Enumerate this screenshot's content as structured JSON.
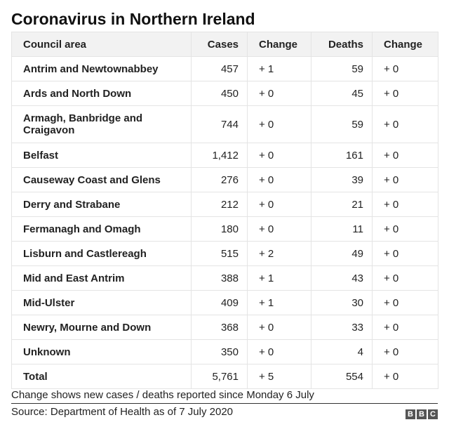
{
  "header": {
    "title": "Coronavirus in Northern Ireland"
  },
  "table": {
    "headers": [
      "Council area",
      "Cases",
      "Change",
      "Deaths",
      "Change"
    ],
    "rows": [
      [
        "Antrim and Newtownabbey",
        "457",
        "+ 1",
        "59",
        "+ 0"
      ],
      [
        "Ards and North Down",
        "450",
        "+ 0",
        "45",
        "+ 0"
      ],
      [
        "Armagh, Banbridge and Craigavon",
        "744",
        "+ 0",
        "59",
        "+ 0"
      ],
      [
        "Belfast",
        "1,412",
        "+ 0",
        "161",
        "+ 0"
      ],
      [
        "Causeway Coast and Glens",
        "276",
        "+ 0",
        "39",
        "+ 0"
      ],
      [
        "Derry and Strabane",
        "212",
        "+ 0",
        "21",
        "+ 0"
      ],
      [
        "Fermanagh and Omagh",
        "180",
        "+ 0",
        "11",
        "+ 0"
      ],
      [
        "Lisburn and Castlereagh",
        "515",
        "+ 2",
        "49",
        "+ 0"
      ],
      [
        "Mid and East Antrim",
        "388",
        "+ 1",
        "43",
        "+ 0"
      ],
      [
        "Mid-Ulster",
        "409",
        "+ 1",
        "30",
        "+ 0"
      ],
      [
        "Newry, Mourne and Down",
        "368",
        "+ 0",
        "33",
        "+ 0"
      ],
      [
        "Unknown",
        "350",
        "+ 0",
        "4",
        "+ 0"
      ],
      [
        "Total",
        "5,761",
        "+ 5",
        "554",
        "+ 0"
      ]
    ]
  },
  "footer": {
    "note": "Change shows new cases / deaths reported since Monday 6 July",
    "source": "Source: Department of Health as of 7 July 2020",
    "logo": [
      "B",
      "B",
      "C"
    ]
  }
}
